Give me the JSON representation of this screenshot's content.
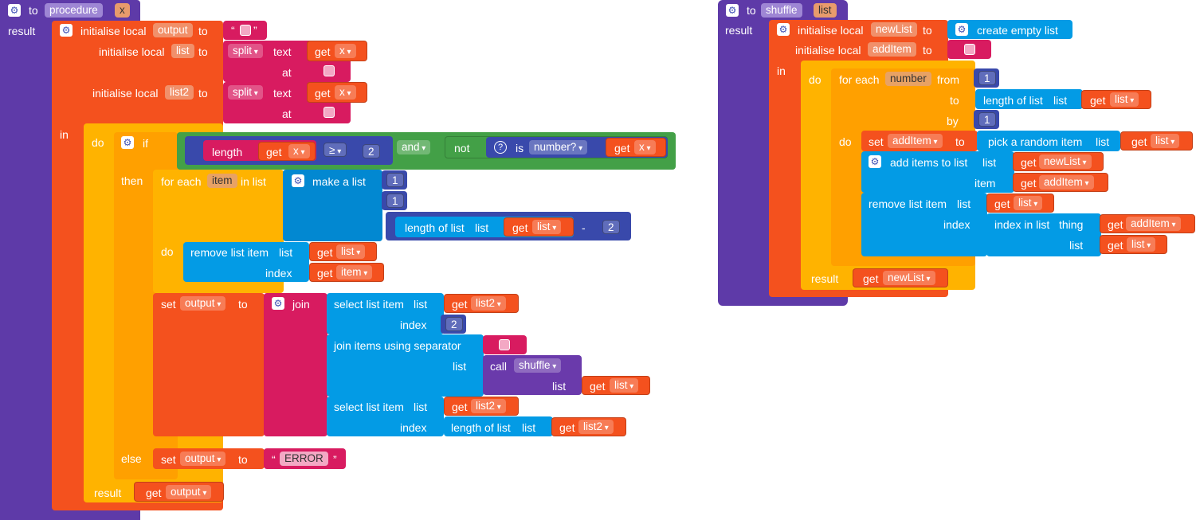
{
  "procedure": {
    "to": "to",
    "name": "procedure",
    "param": "x",
    "result": "result",
    "init_local": "initialise local",
    "to_kw": "to",
    "var_output": "output",
    "var_list": "list",
    "var_list2": "list2",
    "split": "split",
    "text_kw": "text",
    "at_kw": "at",
    "get": "get",
    "x": "x",
    "in": "in",
    "do": "do",
    "if": "if",
    "then": "then",
    "else": "else",
    "length": "length",
    "gte": "≥",
    "num2": "2",
    "and": "and",
    "not": "not",
    "is": "is",
    "number_q": "number?",
    "for_each": "for each",
    "item": "item",
    "in_list": "in list",
    "make_a_list": "make a list",
    "num1a": "1",
    "num1b": "1",
    "length_of_list": "length of list",
    "list_kw": "list",
    "minus": "-",
    "remove_list_item": "remove list item",
    "index": "index",
    "set": "set",
    "join": "join",
    "select_list_item": "select list item",
    "join_items": "join items using separator",
    "call": "call",
    "shuffle": "shuffle",
    "error": "ERROR",
    "quote_open": "“",
    "quote_close": "”"
  },
  "shuffle_proc": {
    "to": "to",
    "name": "shuffle",
    "param": "list",
    "result": "result",
    "init_local": "initialise local",
    "var_newList": "newList",
    "var_addItem": "addItem",
    "to_kw": "to",
    "create_empty_list": "create empty list",
    "in": "in",
    "do": "do",
    "for_each": "for each",
    "number": "number",
    "from": "from",
    "num1": "1",
    "by_num": "1",
    "by": "by",
    "length_of_list": "length of list",
    "list_kw": "list",
    "get": "get",
    "set": "set",
    "pick_random": "pick a random item",
    "add_items": "add items to list",
    "item_kw": "item",
    "remove_list_item": "remove list item",
    "index": "index",
    "index_in_list": "index in list",
    "thing": "thing"
  },
  "icons": {
    "gear": "gear-icon",
    "question": "question-mark-icon"
  }
}
